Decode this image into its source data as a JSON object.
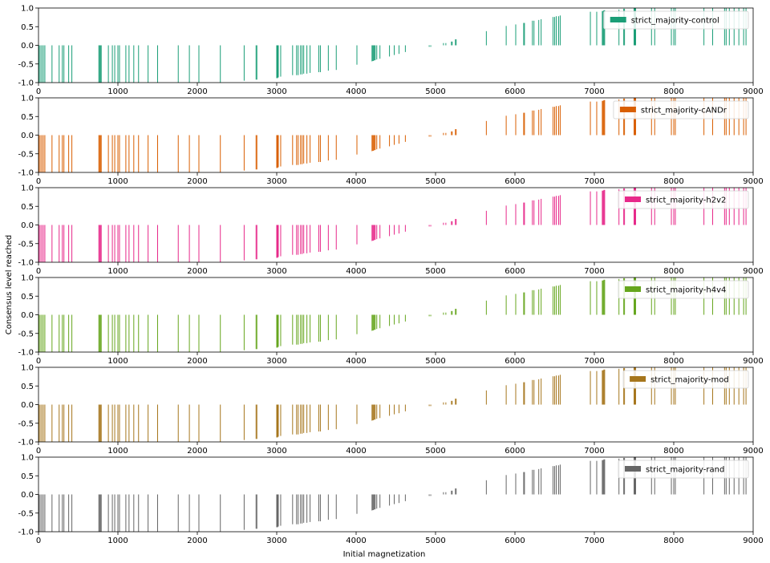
{
  "chart_data": {
    "type": "bar",
    "xlabel": "Initial magnetization",
    "ylabel": "Consensus level reached",
    "xlim": [
      0,
      9000
    ],
    "ylim": [
      -1.0,
      1.0
    ],
    "xticks": [
      "0",
      "1000",
      "2000",
      "3000",
      "4000",
      "5000",
      "6000",
      "7000",
      "8000",
      "9000"
    ],
    "yticks": [
      "1.0",
      "0.5",
      "0.0",
      "-0.5",
      "-1.0"
    ],
    "legend_position": "top-right",
    "grid": false,
    "panels": [
      {
        "series_name": "strict_majority-control",
        "color": "#1b9e77"
      },
      {
        "series_name": "strict_majority-cANDr",
        "color": "#d95f02"
      },
      {
        "series_name": "strict_majority-h2v2",
        "color": "#e7298a"
      },
      {
        "series_name": "strict_majority-h4v4",
        "color": "#66a61e"
      },
      {
        "series_name": "strict_majority-mod",
        "color": "#a6761d"
      },
      {
        "series_name": "strict_majority-rand",
        "color": "#666666"
      }
    ],
    "x": [
      5,
      20,
      40,
      60,
      80,
      170,
      260,
      300,
      320,
      380,
      420,
      760,
      770,
      780,
      790,
      880,
      930,
      960,
      1000,
      1020,
      1100,
      1140,
      1200,
      1260,
      1380,
      1500,
      1760,
      1900,
      2020,
      2290,
      2590,
      2740,
      2750,
      3000,
      3010,
      3020,
      3050,
      3200,
      3250,
      3270,
      3300,
      3320,
      3340,
      3380,
      3420,
      3530,
      3550,
      3650,
      3750,
      4010,
      4200,
      4210,
      4220,
      4230,
      4240,
      4260,
      4300,
      4420,
      4480,
      4540,
      4620,
      4920,
      4940,
      5100,
      5130,
      5200,
      5210,
      5250,
      5260,
      5640,
      5890,
      6010,
      6110,
      6120,
      6220,
      6240,
      6300,
      6330,
      6480,
      6500,
      6520,
      6550,
      6570,
      6950,
      7030,
      7100,
      7110,
      7120,
      7130,
      7310,
      7370,
      7380,
      7500,
      7510,
      7520,
      7720,
      7760,
      7970,
      8000,
      8020,
      8380,
      8490,
      8640,
      8660,
      8700,
      8760,
      8820,
      8880,
      8910
    ],
    "values": [
      -1,
      -1,
      -1,
      -1,
      -1,
      -1,
      -1,
      -1,
      -1,
      -1,
      -1,
      -1,
      -1,
      -1,
      -1,
      -1,
      -1,
      -1,
      -1,
      -1,
      -1,
      -1,
      -1,
      -1,
      -1,
      -1,
      -1,
      -1,
      -1,
      -1,
      -0.95,
      -0.92,
      -0.92,
      -0.88,
      -0.88,
      -0.86,
      -0.84,
      -0.8,
      -0.8,
      -0.8,
      -0.78,
      -0.78,
      -0.76,
      -0.76,
      -0.74,
      -0.72,
      -0.72,
      -0.68,
      -0.66,
      -0.52,
      -0.43,
      -0.42,
      -0.42,
      -0.4,
      -0.4,
      -0.38,
      -0.36,
      -0.3,
      -0.26,
      -0.23,
      -0.18,
      -0.04,
      -0.04,
      0.06,
      0.06,
      0.1,
      0.1,
      0.16,
      0.16,
      0.38,
      0.52,
      0.56,
      0.6,
      0.6,
      0.66,
      0.66,
      0.68,
      0.7,
      0.76,
      0.76,
      0.78,
      0.78,
      0.8,
      0.9,
      0.9,
      0.92,
      0.92,
      0.94,
      0.94,
      0.96,
      0.98,
      0.98,
      1,
      1,
      1,
      1,
      1,
      1,
      1,
      1,
      1,
      1,
      1,
      1,
      1,
      1,
      1,
      1,
      1
    ]
  }
}
